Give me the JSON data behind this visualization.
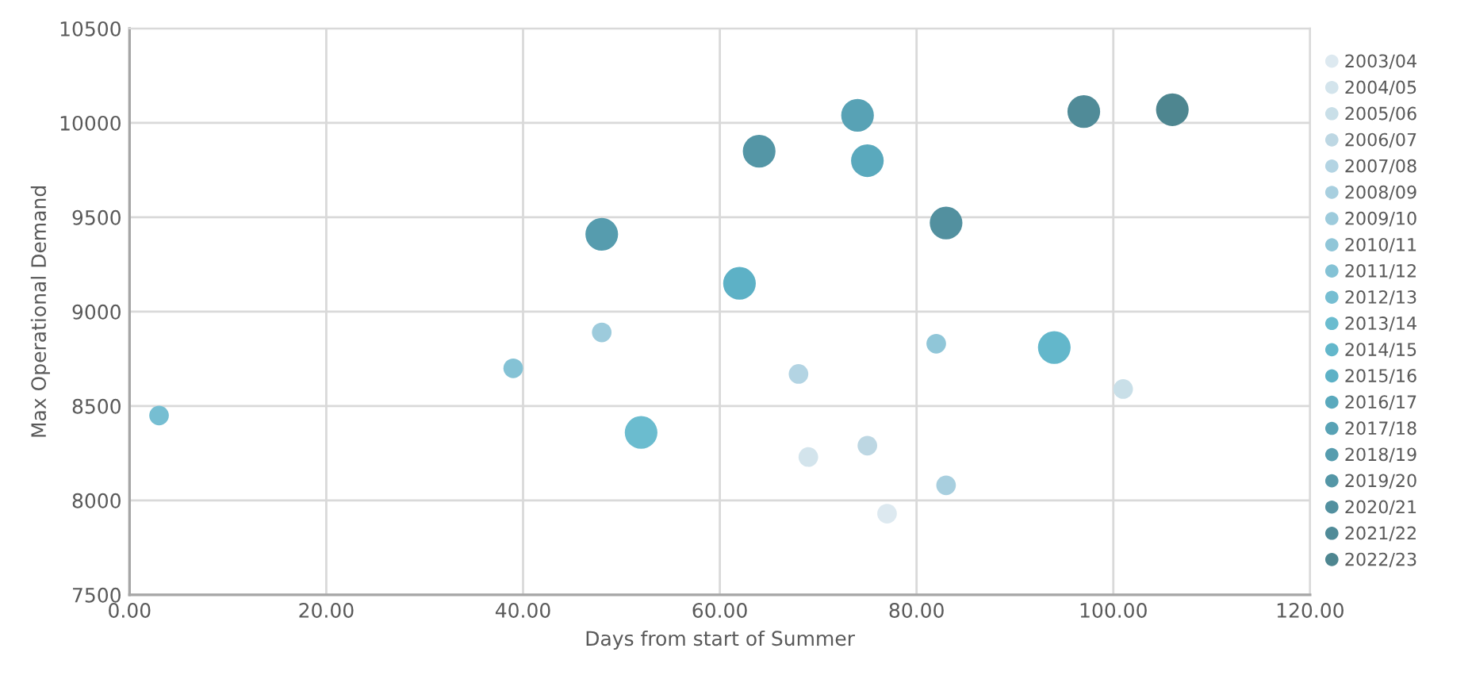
{
  "chart_data": {
    "type": "bubble",
    "xlabel": "Days from start of Summer",
    "ylabel": "Max Operational Demand",
    "xlim": [
      0,
      120
    ],
    "ylim": [
      7500,
      10500
    ],
    "xticks": [
      {
        "value": 0,
        "label": "0.00"
      },
      {
        "value": 20,
        "label": "20.00"
      },
      {
        "value": 40,
        "label": "40.00"
      },
      {
        "value": 60,
        "label": "60.00"
      },
      {
        "value": 80,
        "label": "80.00"
      },
      {
        "value": 100,
        "label": "100.00"
      },
      {
        "value": 120,
        "label": "120.00"
      }
    ],
    "yticks": [
      7500,
      8000,
      8500,
      9000,
      9500,
      10000,
      10500
    ],
    "grid": true,
    "legend": "right",
    "marker": "circle",
    "series": [
      {
        "name": "2003/04",
        "color": "#dde9f0",
        "x": [
          77
        ],
        "values": [
          7930
        ],
        "sizes": [
          0.36
        ]
      },
      {
        "name": "2004/05",
        "color": "#d3e4ec",
        "x": [
          69
        ],
        "values": [
          8230
        ],
        "sizes": [
          0.36
        ]
      },
      {
        "name": "2005/06",
        "color": "#c9dfe8",
        "x": [
          101
        ],
        "values": [
          8590
        ],
        "sizes": [
          0.36
        ]
      },
      {
        "name": "2006/07",
        "color": "#bdd7e3",
        "x": [
          75
        ],
        "values": [
          8290
        ],
        "sizes": [
          0.36
        ]
      },
      {
        "name": "2007/08",
        "color": "#b3d4e3",
        "x": [
          68
        ],
        "values": [
          8670
        ],
        "sizes": [
          0.36
        ]
      },
      {
        "name": "2008/09",
        "color": "#a8cfdf",
        "x": [
          83
        ],
        "values": [
          8080
        ],
        "sizes": [
          0.36
        ]
      },
      {
        "name": "2009/10",
        "color": "#9dcbdc",
        "x": [
          48
        ],
        "values": [
          8890
        ],
        "sizes": [
          0.36
        ]
      },
      {
        "name": "2010/11",
        "color": "#90c6d8",
        "x": [
          82
        ],
        "values": [
          8830
        ],
        "sizes": [
          0.36
        ]
      },
      {
        "name": "2011/12",
        "color": "#84c2d5",
        "x": [
          39
        ],
        "values": [
          8700
        ],
        "sizes": [
          0.36
        ]
      },
      {
        "name": "2012/13",
        "color": "#76bed2",
        "x": [
          3
        ],
        "values": [
          8450
        ],
        "sizes": [
          0.36
        ]
      },
      {
        "name": "2013/14",
        "color": "#6bbccf",
        "x": [
          52
        ],
        "values": [
          8360
        ],
        "sizes": [
          1
        ]
      },
      {
        "name": "2014/15",
        "color": "#63b7cb",
        "x": [
          94
        ],
        "values": [
          8810
        ],
        "sizes": [
          1
        ]
      },
      {
        "name": "2015/16",
        "color": "#5db1c6",
        "x": [
          62
        ],
        "values": [
          9150
        ],
        "sizes": [
          1
        ]
      },
      {
        "name": "2016/17",
        "color": "#5aa9bd",
        "x": [
          75
        ],
        "values": [
          9800
        ],
        "sizes": [
          1
        ]
      },
      {
        "name": "2017/18",
        "color": "#58a2b5",
        "x": [
          74
        ],
        "values": [
          10040
        ],
        "sizes": [
          1
        ]
      },
      {
        "name": "2018/19",
        "color": "#569cae",
        "x": [
          48
        ],
        "values": [
          9410
        ],
        "sizes": [
          1
        ]
      },
      {
        "name": "2019/20",
        "color": "#5496a6",
        "x": [
          64
        ],
        "values": [
          9850
        ],
        "sizes": [
          1
        ]
      },
      {
        "name": "2020/21",
        "color": "#52909f",
        "x": [
          83
        ],
        "values": [
          9470
        ],
        "sizes": [
          1
        ]
      },
      {
        "name": "2021/22",
        "color": "#508b98",
        "x": [
          97
        ],
        "values": [
          10060
        ],
        "sizes": [
          1
        ]
      },
      {
        "name": "2022/23",
        "color": "#4e8690",
        "x": [
          106
        ],
        "values": [
          10070
        ],
        "sizes": [
          1
        ]
      }
    ]
  }
}
